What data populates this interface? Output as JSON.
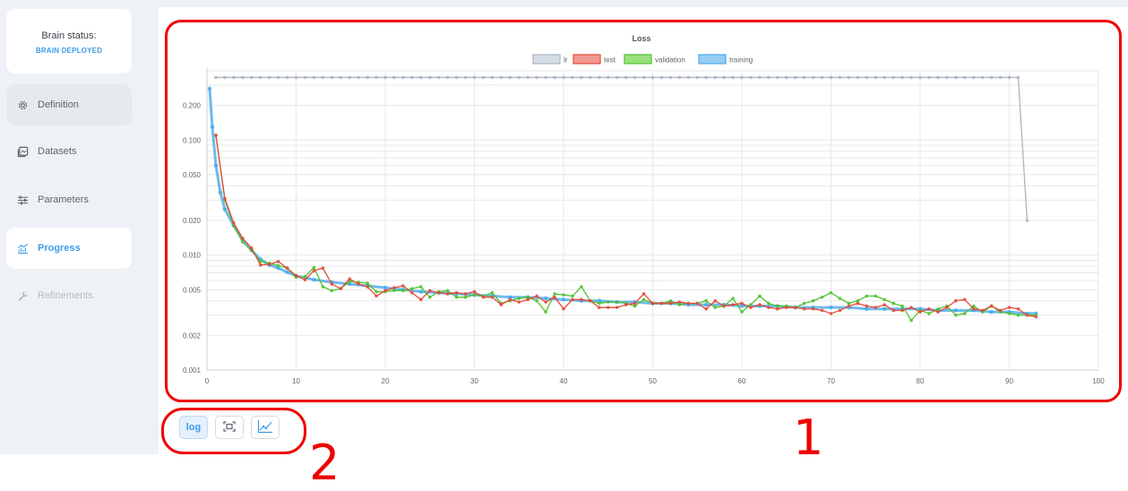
{
  "sidebar": {
    "status_title": "Brain status:",
    "status_value": "BRAIN DEPLOYED",
    "items": [
      {
        "label": "Definition",
        "icon": "gear-icon"
      },
      {
        "label": "Datasets",
        "icon": "datasets-icon"
      },
      {
        "label": "Parameters",
        "icon": "sliders-icon"
      },
      {
        "label": "Progress",
        "icon": "chart-icon",
        "active": true
      },
      {
        "label": "Refinements",
        "icon": "wrench-icon",
        "disabled": true
      }
    ]
  },
  "toolbar": {
    "log_label": "log",
    "fit_icon": "fit-screen-icon",
    "chart_icon": "line-chart-icon"
  },
  "annotations": {
    "label_1": "1",
    "label_2": "2"
  },
  "chart_data": {
    "type": "line",
    "title": "Loss",
    "yscale": "log",
    "xlim": [
      0,
      100
    ],
    "ylim": [
      0.001,
      0.4
    ],
    "xticks": [
      "0",
      "10",
      "20",
      "30",
      "40",
      "50",
      "60",
      "70",
      "80",
      "90",
      "100"
    ],
    "yticks": [
      "0.200",
      "0.100",
      "0.050",
      "0.020",
      "0.010",
      "0.005",
      "0.002",
      "0.001"
    ],
    "grid": true,
    "legend_position": "top",
    "series": [
      {
        "name": "lr",
        "color": "#aab5c2",
        "x": [
          1,
          2,
          3,
          4,
          5,
          6,
          7,
          8,
          9,
          10,
          11,
          12,
          13,
          14,
          15,
          16,
          17,
          18,
          19,
          20,
          21,
          22,
          23,
          24,
          25,
          26,
          27,
          28,
          29,
          30,
          31,
          32,
          33,
          34,
          35,
          36,
          37,
          38,
          39,
          40,
          41,
          42,
          43,
          44,
          45,
          46,
          47,
          48,
          49,
          50,
          51,
          52,
          53,
          54,
          55,
          56,
          57,
          58,
          59,
          60,
          61,
          62,
          63,
          64,
          65,
          66,
          67,
          68,
          69,
          70,
          71,
          72,
          73,
          74,
          75,
          76,
          77,
          78,
          79,
          80,
          81,
          82,
          83,
          84,
          85,
          86,
          87,
          88,
          89,
          90,
          91,
          92
        ],
        "y": [
          0.35,
          0.35,
          0.35,
          0.35,
          0.35,
          0.35,
          0.35,
          0.35,
          0.35,
          0.35,
          0.35,
          0.35,
          0.35,
          0.35,
          0.35,
          0.35,
          0.35,
          0.35,
          0.35,
          0.35,
          0.35,
          0.35,
          0.35,
          0.35,
          0.35,
          0.35,
          0.35,
          0.35,
          0.35,
          0.35,
          0.35,
          0.35,
          0.35,
          0.35,
          0.35,
          0.35,
          0.35,
          0.35,
          0.35,
          0.35,
          0.35,
          0.35,
          0.35,
          0.35,
          0.35,
          0.35,
          0.35,
          0.35,
          0.35,
          0.35,
          0.35,
          0.35,
          0.35,
          0.35,
          0.35,
          0.35,
          0.35,
          0.35,
          0.35,
          0.35,
          0.35,
          0.35,
          0.35,
          0.35,
          0.35,
          0.35,
          0.35,
          0.35,
          0.35,
          0.35,
          0.35,
          0.35,
          0.35,
          0.35,
          0.35,
          0.35,
          0.35,
          0.35,
          0.35,
          0.35,
          0.35,
          0.35,
          0.35,
          0.35,
          0.35,
          0.35,
          0.35,
          0.35,
          0.35,
          0.35,
          0.35,
          0.02
        ]
      },
      {
        "name": "test",
        "color": "#e34a3a",
        "x": [
          1,
          2,
          3,
          4,
          5,
          6,
          7,
          8,
          9,
          10,
          11,
          12,
          13,
          14,
          15,
          16,
          17,
          18,
          19,
          20,
          21,
          22,
          23,
          24,
          25,
          26,
          27,
          28,
          29,
          30,
          31,
          32,
          33,
          34,
          35,
          36,
          37,
          38,
          39,
          40,
          41,
          42,
          43,
          44,
          45,
          46,
          47,
          48,
          49,
          50,
          51,
          52,
          53,
          54,
          55,
          56,
          57,
          58,
          59,
          60,
          61,
          62,
          63,
          64,
          65,
          66,
          67,
          68,
          69,
          70,
          71,
          72,
          73,
          74,
          75,
          76,
          77,
          78,
          79,
          80,
          81,
          82,
          83,
          84,
          85,
          86,
          87,
          88,
          89,
          90,
          91,
          92,
          93
        ],
        "y": [
          0.11,
          0.031,
          0.019,
          0.014,
          0.0115,
          0.0082,
          0.0083,
          0.0088,
          0.0077,
          0.0066,
          0.0061,
          0.0073,
          0.0077,
          0.0056,
          0.0051,
          0.0062,
          0.0056,
          0.0053,
          0.0044,
          0.0049,
          0.0052,
          0.0054,
          0.0047,
          0.0041,
          0.0049,
          0.0047,
          0.0046,
          0.0047,
          0.0046,
          0.0048,
          0.0043,
          0.0043,
          0.0037,
          0.0041,
          0.0039,
          0.0041,
          0.0044,
          0.0039,
          0.0043,
          0.0034,
          0.0041,
          0.0041,
          0.004,
          0.0035,
          0.0035,
          0.0035,
          0.0037,
          0.0038,
          0.0046,
          0.0038,
          0.0038,
          0.0038,
          0.0039,
          0.0038,
          0.0038,
          0.0034,
          0.004,
          0.0036,
          0.0037,
          0.0038,
          0.0035,
          0.0037,
          0.0035,
          0.0034,
          0.0035,
          0.0035,
          0.0034,
          0.0034,
          0.0033,
          0.0031,
          0.0033,
          0.0036,
          0.0038,
          0.0036,
          0.0035,
          0.0037,
          0.0033,
          0.0033,
          0.0035,
          0.0032,
          0.0034,
          0.0032,
          0.0035,
          0.004,
          0.0041,
          0.0034,
          0.0033,
          0.0036,
          0.0033,
          0.0035,
          0.0034,
          0.003,
          0.0029
        ]
      },
      {
        "name": "validation",
        "color": "#4fc230",
        "x": [
          1,
          2,
          3,
          4,
          5,
          6,
          7,
          8,
          9,
          10,
          11,
          12,
          13,
          14,
          15,
          16,
          17,
          18,
          19,
          20,
          21,
          22,
          23,
          24,
          25,
          26,
          27,
          28,
          29,
          30,
          31,
          32,
          33,
          34,
          35,
          36,
          37,
          38,
          39,
          40,
          41,
          42,
          43,
          44,
          45,
          46,
          47,
          48,
          49,
          50,
          51,
          52,
          53,
          54,
          55,
          56,
          57,
          58,
          59,
          60,
          61,
          62,
          63,
          64,
          65,
          66,
          67,
          68,
          69,
          70,
          71,
          72,
          73,
          74,
          75,
          76,
          77,
          78,
          79,
          80,
          81,
          82,
          83,
          84,
          85,
          86,
          87,
          88,
          89,
          90,
          91,
          92,
          93
        ],
        "y": [
          0.11,
          0.03,
          0.018,
          0.013,
          0.011,
          0.0088,
          0.0085,
          0.0081,
          0.0077,
          0.0064,
          0.0065,
          0.0078,
          0.0053,
          0.0049,
          0.0051,
          0.0059,
          0.0058,
          0.0057,
          0.0048,
          0.0048,
          0.0049,
          0.0049,
          0.0051,
          0.0053,
          0.0043,
          0.0048,
          0.0049,
          0.0043,
          0.0043,
          0.0045,
          0.0044,
          0.0047,
          0.0038,
          0.004,
          0.0042,
          0.0043,
          0.004,
          0.0032,
          0.0046,
          0.0045,
          0.0044,
          0.0053,
          0.004,
          0.0038,
          0.0039,
          0.0039,
          0.0038,
          0.0036,
          0.0041,
          0.0038,
          0.0038,
          0.004,
          0.0037,
          0.0038,
          0.0038,
          0.004,
          0.0035,
          0.0036,
          0.0042,
          0.0032,
          0.0037,
          0.0044,
          0.0038,
          0.0036,
          0.0036,
          0.0035,
          0.0038,
          0.004,
          0.0043,
          0.0047,
          0.0042,
          0.0038,
          0.004,
          0.0044,
          0.0044,
          0.0041,
          0.0038,
          0.0036,
          0.0027,
          0.0033,
          0.0031,
          0.0034,
          0.0036,
          0.003,
          0.0031,
          0.0036,
          0.0032,
          0.0036,
          0.0032,
          0.0031,
          0.003,
          0.003,
          0.003
        ]
      },
      {
        "name": "training",
        "color": "#4aa9ea",
        "x": [
          0.3,
          0.6,
          1,
          1.5,
          2,
          3,
          4,
          5,
          6,
          7,
          8,
          9,
          10,
          12,
          14,
          16,
          18,
          20,
          22,
          24,
          26,
          28,
          30,
          32,
          34,
          36,
          38,
          40,
          42,
          44,
          46,
          48,
          50,
          52,
          54,
          56,
          58,
          60,
          62,
          64,
          66,
          68,
          70,
          72,
          74,
          76,
          78,
          80,
          82,
          84,
          86,
          88,
          90,
          92,
          93
        ],
        "y": [
          0.28,
          0.13,
          0.06,
          0.035,
          0.025,
          0.018,
          0.0135,
          0.011,
          0.0092,
          0.0082,
          0.0077,
          0.0071,
          0.0066,
          0.0061,
          0.0058,
          0.0056,
          0.0054,
          0.0052,
          0.005,
          0.0048,
          0.0047,
          0.0046,
          0.0045,
          0.0044,
          0.0043,
          0.0043,
          0.0042,
          0.0041,
          0.004,
          0.004,
          0.0039,
          0.0039,
          0.0038,
          0.0038,
          0.0037,
          0.0037,
          0.0037,
          0.0036,
          0.0036,
          0.0036,
          0.0035,
          0.0035,
          0.0035,
          0.0035,
          0.0034,
          0.0034,
          0.0034,
          0.0034,
          0.0033,
          0.0033,
          0.0033,
          0.0032,
          0.0032,
          0.0031,
          0.0031
        ]
      }
    ]
  }
}
